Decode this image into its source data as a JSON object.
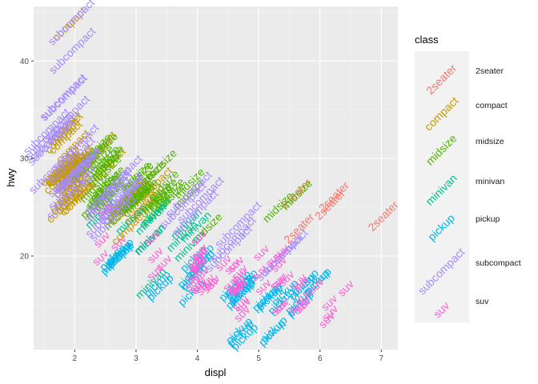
{
  "chart_data": {
    "type": "scatter",
    "xlabel": "displ",
    "ylabel": "hwy",
    "xlim": [
      1.33,
      7.27
    ],
    "ylim": [
      10.4,
      45.6
    ],
    "xticks": [
      "2",
      "3",
      "4",
      "5",
      "6",
      "7"
    ],
    "yticks": [
      "20",
      "30",
      "40"
    ],
    "xtick_values": [
      2,
      3,
      4,
      5,
      6,
      7
    ],
    "ytick_values": [
      20,
      30,
      40
    ],
    "grid": true,
    "legend": {
      "title": "class",
      "position": "right",
      "entries": [
        "2seater",
        "compact",
        "midsize",
        "minivan",
        "pickup",
        "subcompact",
        "suv"
      ]
    },
    "colors": {
      "2seater": "#F8766D",
      "compact": "#C49A00",
      "midsize": "#53B400",
      "minivan": "#00C094",
      "pickup": "#00B6EB",
      "subcompact": "#A58AFF",
      "suv": "#FB61D7"
    },
    "series": [
      {
        "name": "2seater",
        "points": [
          [
            5.7,
            26
          ],
          [
            5.7,
            23
          ],
          [
            6.2,
            26
          ],
          [
            6.2,
            25
          ],
          [
            7.0,
            24
          ]
        ]
      },
      {
        "name": "compact",
        "points": [
          [
            1.8,
            29
          ],
          [
            1.8,
            29
          ],
          [
            2.0,
            31
          ],
          [
            2.0,
            30
          ],
          [
            2.8,
            26
          ],
          [
            2.8,
            26
          ],
          [
            3.1,
            27
          ],
          [
            1.8,
            26
          ],
          [
            1.8,
            25
          ],
          [
            2.0,
            28
          ],
          [
            2.0,
            27
          ],
          [
            2.8,
            25
          ],
          [
            2.8,
            25
          ],
          [
            3.1,
            25
          ],
          [
            3.1,
            25
          ],
          [
            2.2,
            27
          ],
          [
            2.2,
            29
          ],
          [
            2.4,
            31
          ],
          [
            2.4,
            31
          ],
          [
            3.0,
            26
          ],
          [
            3.0,
            26
          ],
          [
            3.3,
            27
          ],
          [
            1.8,
            29
          ],
          [
            1.8,
            29
          ],
          [
            1.8,
            29
          ],
          [
            1.8,
            28
          ],
          [
            1.8,
            29
          ],
          [
            1.8,
            33
          ],
          [
            1.8,
            32
          ],
          [
            1.8,
            33
          ],
          [
            1.8,
            32
          ],
          [
            2.0,
            26
          ],
          [
            2.0,
            26
          ],
          [
            2.0,
            28
          ],
          [
            2.0,
            26
          ],
          [
            2.0,
            29
          ],
          [
            2.0,
            28
          ],
          [
            2.0,
            29
          ],
          [
            2.0,
            29
          ],
          [
            2.8,
            23
          ],
          [
            1.9,
            44
          ],
          [
            2.0,
            29
          ],
          [
            2.0,
            26
          ],
          [
            2.5,
            29
          ],
          [
            2.5,
            29
          ],
          [
            1.8,
            29
          ],
          [
            1.8,
            29
          ],
          [
            2.0,
            28
          ],
          [
            2.0,
            29
          ],
          [
            2.8,
            26
          ],
          [
            2.8,
            26
          ],
          [
            2.0,
            28
          ],
          [
            2.0,
            28
          ]
        ]
      },
      {
        "name": "midsize",
        "points": [
          [
            2.4,
            27
          ],
          [
            2.4,
            30
          ],
          [
            3.1,
            26
          ],
          [
            3.5,
            29
          ],
          [
            3.6,
            26
          ],
          [
            2.5,
            27
          ],
          [
            2.5,
            27
          ],
          [
            2.5,
            26
          ],
          [
            2.5,
            25
          ],
          [
            2.7,
            24
          ],
          [
            3.0,
            26
          ],
          [
            3.5,
            26
          ],
          [
            3.3,
            28
          ],
          [
            3.3,
            26
          ],
          [
            3.8,
            26
          ],
          [
            2.5,
            26
          ],
          [
            2.5,
            27
          ],
          [
            3.5,
            27
          ],
          [
            3.5,
            26
          ],
          [
            2.4,
            31
          ],
          [
            2.4,
            31
          ],
          [
            2.2,
            29
          ],
          [
            2.4,
            29
          ],
          [
            3.0,
            27
          ],
          [
            3.1,
            26
          ],
          [
            3.8,
            27
          ],
          [
            2.5,
            29
          ],
          [
            2.5,
            30
          ],
          [
            2.5,
            29
          ],
          [
            3.0,
            28
          ],
          [
            2.4,
            26
          ],
          [
            2.4,
            30
          ],
          [
            2.5,
            30
          ],
          [
            3.0,
            26
          ],
          [
            3.0,
            26
          ],
          [
            3.3,
            26
          ],
          [
            3.3,
            25
          ],
          [
            2.8,
            25
          ],
          [
            3.1,
            26
          ],
          [
            4.2,
            23
          ],
          [
            5.3,
            25
          ],
          [
            5.7,
            26
          ],
          [
            2.3,
            25
          ],
          [
            2.5,
            26
          ],
          [
            2.5,
            28
          ],
          [
            3.0,
            28
          ]
        ]
      },
      {
        "name": "minivan",
        "points": [
          [
            2.4,
            24
          ],
          [
            3.0,
            24
          ],
          [
            3.3,
            22
          ],
          [
            3.3,
            22
          ],
          [
            3.3,
            24
          ],
          [
            3.3,
            24
          ],
          [
            3.3,
            17
          ],
          [
            3.8,
            22
          ],
          [
            3.8,
            21
          ],
          [
            3.8,
            23
          ],
          [
            4.0,
            23
          ]
        ]
      },
      {
        "name": "pickup",
        "points": [
          [
            2.7,
            20
          ],
          [
            2.7,
            20
          ],
          [
            2.7,
            19
          ],
          [
            3.4,
            17
          ],
          [
            3.4,
            17
          ],
          [
            4.0,
            20
          ],
          [
            4.7,
            17
          ],
          [
            4.7,
            12
          ],
          [
            4.7,
            12
          ],
          [
            4.7,
            16
          ],
          [
            5.2,
            16
          ],
          [
            5.2,
            16
          ],
          [
            5.7,
            15
          ],
          [
            5.9,
            17
          ],
          [
            4.7,
            12
          ],
          [
            4.7,
            17
          ],
          [
            5.2,
            12
          ],
          [
            5.2,
            16
          ],
          [
            3.9,
            18
          ],
          [
            3.9,
            16
          ],
          [
            4.7,
            16
          ],
          [
            4.7,
            16
          ],
          [
            5.2,
            12
          ],
          [
            5.7,
            15
          ],
          [
            5.9,
            17
          ],
          [
            4.6,
            17
          ],
          [
            5.4,
            15
          ],
          [
            5.4,
            16
          ],
          [
            4.0,
            19
          ],
          [
            4.0,
            18
          ],
          [
            4.7,
            17
          ],
          [
            5.7,
            17
          ],
          [
            2.7,
            20
          ],
          [
            2.7,
            20
          ],
          [
            2.7,
            20
          ],
          [
            4.0,
            20
          ],
          [
            4.0,
            19
          ],
          [
            4.7,
            17
          ],
          [
            5.7,
            17
          ]
        ]
      },
      {
        "name": "subcompact",
        "points": [
          [
            3.8,
            26
          ],
          [
            3.8,
            25
          ],
          [
            4.0,
            26
          ],
          [
            4.0,
            24
          ],
          [
            4.6,
            21
          ],
          [
            4.6,
            22
          ],
          [
            5.4,
            20
          ],
          [
            5.4,
            20
          ],
          [
            4.6,
            23
          ],
          [
            1.6,
            33
          ],
          [
            1.6,
            32
          ],
          [
            1.6,
            32
          ],
          [
            1.6,
            29
          ],
          [
            1.6,
            32
          ],
          [
            1.8,
            34
          ],
          [
            1.8,
            36
          ],
          [
            1.8,
            36
          ],
          [
            2.0,
            29
          ],
          [
            2.0,
            26
          ],
          [
            2.0,
            27
          ],
          [
            2.0,
            30
          ],
          [
            2.0,
            31
          ],
          [
            2.7,
            26
          ],
          [
            2.7,
            26
          ],
          [
            2.7,
            28
          ],
          [
            2.7,
            26
          ],
          [
            2.0,
            29
          ],
          [
            1.9,
            41
          ],
          [
            1.9,
            44
          ],
          [
            2.5,
            24
          ],
          [
            2.5,
            26
          ],
          [
            2.5,
            27
          ],
          [
            2.5,
            26
          ],
          [
            2.0,
            28
          ],
          [
            2.0,
            29
          ],
          [
            2.7,
            24
          ]
        ]
      },
      {
        "name": "suv",
        "points": [
          [
            5.3,
            20
          ],
          [
            5.3,
            15
          ],
          [
            5.3,
            20
          ],
          [
            5.7,
            17
          ],
          [
            6.0,
            17
          ],
          [
            5.7,
            15
          ],
          [
            6.5,
            17
          ],
          [
            4.7,
            19
          ],
          [
            4.7,
            18
          ],
          [
            4.7,
            14
          ],
          [
            5.7,
            15
          ],
          [
            6.1,
            13
          ],
          [
            5.3,
            17
          ],
          [
            5.3,
            19
          ],
          [
            5.7,
            16
          ],
          [
            4.0,
            17
          ],
          [
            4.0,
            19
          ],
          [
            4.0,
            17
          ],
          [
            4.7,
            17
          ],
          [
            4.7,
            17
          ],
          [
            4.6,
            19
          ],
          [
            4.6,
            17
          ],
          [
            5.4,
            15
          ],
          [
            5.4,
            17
          ],
          [
            5.4,
            18
          ],
          [
            4.0,
            17
          ],
          [
            4.0,
            19
          ],
          [
            4.6,
            17
          ],
          [
            5.0,
            17
          ],
          [
            4.2,
            17
          ],
          [
            4.2,
            17
          ],
          [
            4.2,
            17
          ],
          [
            4.2,
            17
          ],
          [
            4.7,
            15
          ],
          [
            4.7,
            18
          ],
          [
            5.7,
            17
          ],
          [
            6.1,
            15
          ],
          [
            4.0,
            19
          ],
          [
            4.0,
            20
          ],
          [
            4.0,
            20
          ],
          [
            4.0,
            22
          ],
          [
            4.6,
            17
          ],
          [
            4.6,
            17
          ],
          [
            4.0,
            19
          ],
          [
            4.0,
            20
          ],
          [
            5.0,
            20
          ],
          [
            2.5,
            20
          ],
          [
            2.5,
            22
          ],
          [
            3.3,
            18
          ],
          [
            2.7,
            21
          ],
          [
            3.4,
            19
          ],
          [
            4.0,
            18
          ],
          [
            4.7,
            17
          ],
          [
            5.0,
            18
          ],
          [
            4.0,
            19
          ],
          [
            2.5,
            25
          ],
          [
            4.4,
            19
          ],
          [
            3.3,
            22
          ],
          [
            3.3,
            20
          ],
          [
            4.0,
            18
          ],
          [
            6.2,
            14
          ],
          [
            4.7,
            15
          ],
          [
            5.6,
            15
          ]
        ]
      }
    ]
  }
}
